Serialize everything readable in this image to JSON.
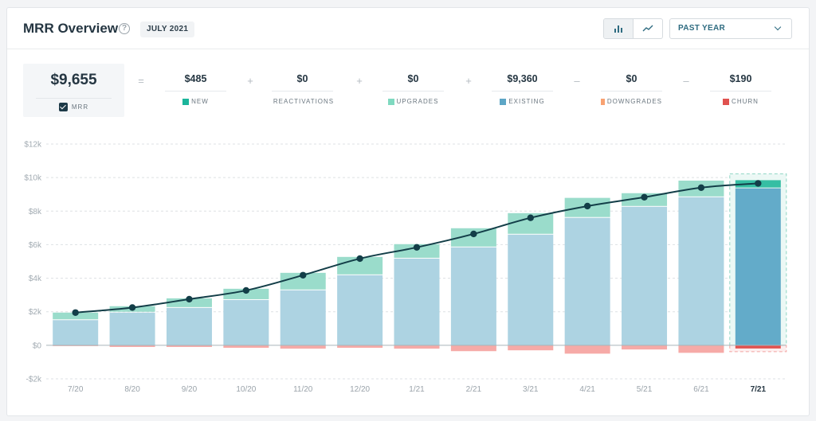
{
  "header": {
    "title": "MRR Overview",
    "help_icon": "question-circle-icon",
    "date_badge": "JULY 2021",
    "view_toggle": {
      "bar_icon": "bar-chart-icon",
      "line_icon": "line-chart-icon",
      "active": "bar"
    },
    "period": {
      "selected": "PAST YEAR",
      "icon": "chevron-down-icon"
    }
  },
  "summary": {
    "mrr": {
      "value": "$9,655",
      "label": "MRR",
      "checked": true
    },
    "operators": [
      "=",
      "+",
      "+",
      "+",
      "–",
      "–"
    ],
    "metrics": [
      {
        "key": "new",
        "value": "$485",
        "label": "NEW",
        "color": "#1cb59b"
      },
      {
        "key": "reactivations",
        "value": "$0",
        "label": "REACTIVATIONS",
        "color": "#16a88f"
      },
      {
        "key": "upgrades",
        "value": "$0",
        "label": "UPGRADES",
        "color": "#7fd9c0"
      },
      {
        "key": "existing",
        "value": "$9,360",
        "label": "EXISTING",
        "color": "#5da6c6"
      },
      {
        "key": "downgrades",
        "value": "$0",
        "label": "DOWNGRADES",
        "color": "#f8a272"
      },
      {
        "key": "churn",
        "value": "$190",
        "label": "CHURN",
        "color": "#e0524f"
      }
    ]
  },
  "chart_data": {
    "type": "bar",
    "stacked": true,
    "title": "MRR Overview",
    "xlabel": "",
    "ylabel": "",
    "ylim": [
      -2000,
      12000
    ],
    "yticks": [
      -2000,
      0,
      2000,
      4000,
      6000,
      8000,
      10000,
      12000
    ],
    "ytick_labels": [
      "-$2k",
      "$0",
      "$2k",
      "$4k",
      "$6k",
      "$8k",
      "$10k",
      "$12k"
    ],
    "grid": true,
    "categories": [
      "7/20",
      "8/20",
      "9/20",
      "10/20",
      "11/20",
      "12/20",
      "1/21",
      "2/21",
      "3/21",
      "4/21",
      "5/21",
      "6/21",
      "7/21"
    ],
    "highlighted_category": "7/21",
    "series": [
      {
        "name": "Existing",
        "color": "#add3e2",
        "highlight_color": "#63abc9",
        "values": [
          1500,
          1950,
          2230,
          2700,
          3280,
          4180,
          5170,
          5840,
          6600,
          7600,
          8260,
          8830,
          9360
        ]
      },
      {
        "name": "New",
        "color": "#9adccb",
        "highlight_color": "#36bea3",
        "values": [
          450,
          380,
          570,
          670,
          1040,
          1090,
          860,
          1140,
          1280,
          1190,
          810,
          990,
          485
        ]
      },
      {
        "name": "Churn",
        "color": "#f6aaa7",
        "highlight_color": "#e0524f",
        "values": [
          -20,
          -100,
          -100,
          -150,
          -200,
          -150,
          -200,
          -350,
          -300,
          -500,
          -250,
          -450,
          -190
        ]
      }
    ],
    "line": {
      "name": "MRR",
      "color": "#133e48",
      "values": [
        1950,
        2250,
        2750,
        3270,
        4180,
        5170,
        5840,
        6640,
        7600,
        8300,
        8830,
        9400,
        9655
      ]
    }
  }
}
